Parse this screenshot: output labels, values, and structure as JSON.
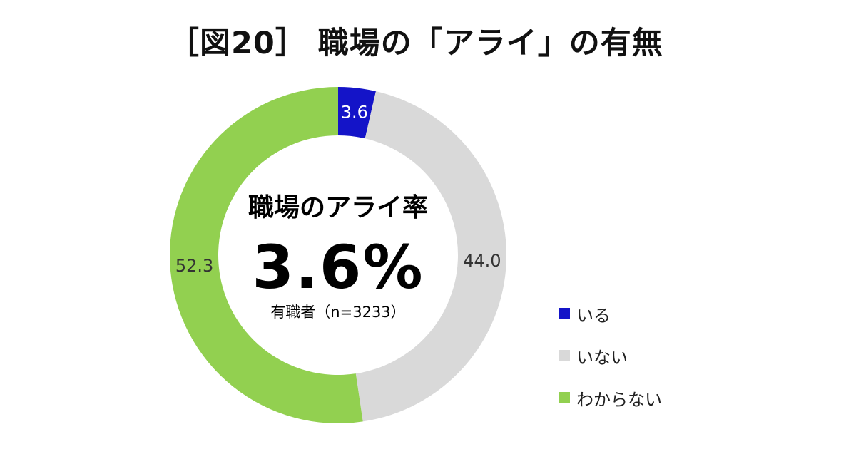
{
  "title": "［図20］ 職場の「アライ」の有無",
  "center": {
    "caption": "職場のアライ率",
    "value": "3.6%",
    "sample": "有職者（n=3233）"
  },
  "chart_data": {
    "type": "pie",
    "variant": "donut",
    "categories": [
      "いる",
      "いない",
      "わからない"
    ],
    "values": [
      3.6,
      44.0,
      52.3
    ],
    "value_labels": [
      "3.6",
      "44.0",
      "52.3"
    ],
    "colors": [
      "#1414c8",
      "#d9d9d9",
      "#92d050"
    ],
    "label_colors": [
      "#ffffff",
      "#333333",
      "#333333"
    ],
    "legend_position": "right"
  }
}
